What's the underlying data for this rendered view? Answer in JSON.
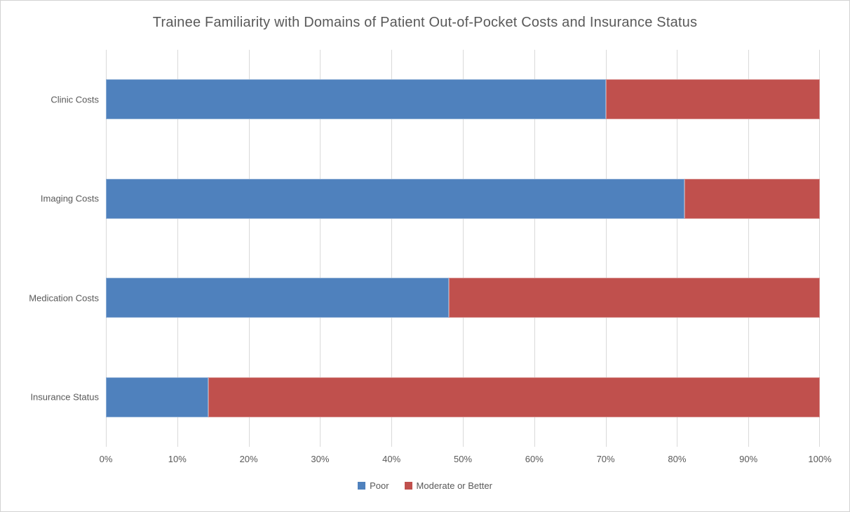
{
  "chart_data": {
    "type": "bar",
    "orientation": "horizontal",
    "stacked": true,
    "title": "Trainee Familiarity with Domains of Patient Out-of-Pocket Costs and Insurance Status",
    "categories": [
      "Clinic Costs",
      "Imaging Costs",
      "Medication Costs",
      "Insurance Status"
    ],
    "series": [
      {
        "name": "Poor",
        "color": "#4F81BD",
        "values": [
          70,
          81,
          48,
          14.3
        ]
      },
      {
        "name": "Moderate or Better",
        "color": "#C0504D",
        "values": [
          30,
          19,
          52,
          85.7
        ]
      }
    ],
    "x_axis": {
      "min": 0,
      "max": 100,
      "tick_labels": [
        "0%",
        "10%",
        "20%",
        "30%",
        "40%",
        "50%",
        "60%",
        "70%",
        "80%",
        "90%",
        "100%"
      ]
    },
    "y_axis_label": "",
    "x_axis_label": "",
    "legend_position": "bottom",
    "grid": "vertical-only",
    "gridline_color": "#D9D9D9",
    "text_color": "#595959"
  }
}
